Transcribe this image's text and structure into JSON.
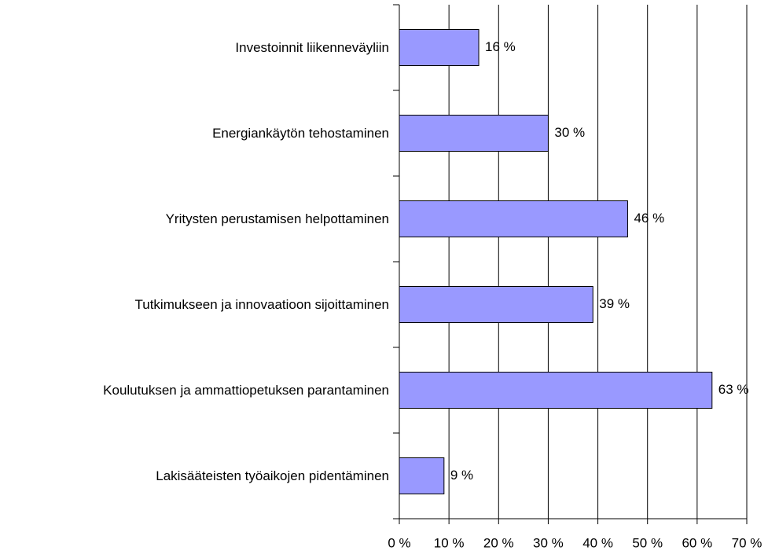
{
  "chart_data": {
    "type": "bar",
    "orientation": "horizontal",
    "categories": [
      "Investoinnit liikenneväyliin",
      "Energiankäytön tehostaminen",
      "Yritysten perustamisen helpottaminen",
      "Tutkimukseen ja innovaatioon sijoittaminen",
      "Koulutuksen ja ammattiopetuksen parantaminen",
      "Lakisääteisten työaikojen pidentäminen"
    ],
    "values": [
      16,
      30,
      46,
      39,
      63,
      9
    ],
    "value_labels": [
      "16 %",
      "30 %",
      "46 %",
      "39 %",
      "63 %",
      "9 %"
    ],
    "color": "#9999ff",
    "xlim": [
      0,
      70
    ],
    "xticks": [
      {
        "value": 0,
        "label": "0 %"
      },
      {
        "value": 10,
        "label": "10 %"
      },
      {
        "value": 20,
        "label": "20 %"
      },
      {
        "value": 30,
        "label": "30 %"
      },
      {
        "value": 40,
        "label": "40 %"
      },
      {
        "value": 50,
        "label": "50 %"
      },
      {
        "value": 60,
        "label": "60 %"
      },
      {
        "value": 70,
        "label": "70 %"
      }
    ],
    "grid": true
  }
}
